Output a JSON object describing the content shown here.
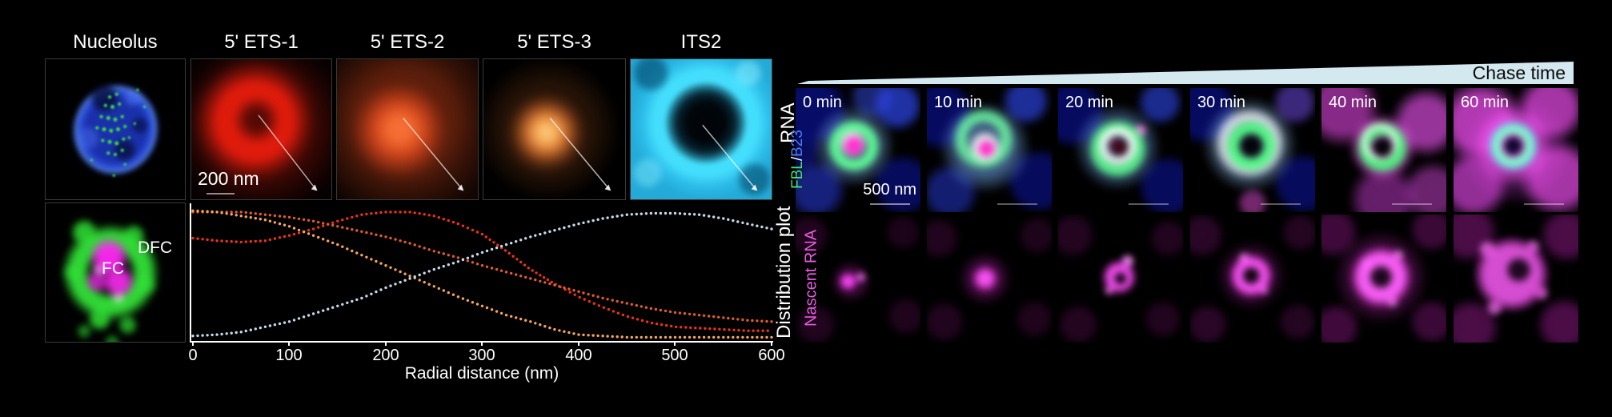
{
  "left_section": {
    "panel_labels": [
      "Nucleolus",
      "5' ETS-1",
      "5' ETS-2",
      "5' ETS-3",
      "ITS2"
    ],
    "row_label": "RNA",
    "scale_bar": "200 nm",
    "inset_labels": {
      "dfc": "DFC",
      "fc": "FC"
    },
    "plot_row_label": "Distribution plot"
  },
  "right_section": {
    "chase_label": "Chase time",
    "time_labels": [
      "0 min",
      "10 min",
      "20 min",
      "30 min",
      "40 min",
      "60 min"
    ],
    "channel_label": {
      "fbl": "FBL",
      "sep": " / ",
      "b23": "B23"
    },
    "scale_bar": "500 nm",
    "bottom_row_label": "Nascent RNA"
  },
  "colors": {
    "ets1_red": "#ee3018",
    "ets2_vermilion": "#e05a2e",
    "ets3_orange": "#f5a55a",
    "its2_pale_blue": "#c3d9e9",
    "chase_wedge_fill": "#d3e9ef",
    "chase_text": "#0a0a0a",
    "fbl_green": "#45e06e",
    "b23_blue": "#4a7cf7",
    "nascent_magenta": "#e85ce0"
  },
  "chart_data": {
    "type": "line",
    "style": "dotted",
    "title": "",
    "xlabel": "Radial distance (nm)",
    "ylabel": "",
    "xlim": [
      0,
      600
    ],
    "ylim": [
      0,
      1
    ],
    "grid": false,
    "legend_position": "none (series colors match the RNA image panels)",
    "x_tick_labels": [
      "0",
      "100",
      "200",
      "300",
      "400",
      "500",
      "600"
    ],
    "x": [
      0,
      25,
      50,
      75,
      100,
      125,
      150,
      175,
      200,
      225,
      250,
      275,
      300,
      325,
      350,
      375,
      400,
      425,
      450,
      475,
      500,
      525,
      550,
      575,
      600
    ],
    "series": [
      {
        "name": "5' ETS-1",
        "color": "#ee3018",
        "values": [
          0.77,
          0.75,
          0.74,
          0.75,
          0.79,
          0.84,
          0.9,
          0.95,
          0.97,
          0.97,
          0.94,
          0.88,
          0.8,
          0.67,
          0.53,
          0.42,
          0.32,
          0.24,
          0.17,
          0.12,
          0.09,
          0.08,
          0.07,
          0.06,
          0.06
        ]
      },
      {
        "name": "5' ETS-2",
        "color": "#e05a2e",
        "values": [
          0.97,
          0.97,
          0.97,
          0.95,
          0.93,
          0.9,
          0.86,
          0.82,
          0.78,
          0.73,
          0.67,
          0.62,
          0.56,
          0.51,
          0.46,
          0.41,
          0.36,
          0.31,
          0.27,
          0.23,
          0.2,
          0.18,
          0.16,
          0.14,
          0.13
        ]
      },
      {
        "name": "5' ETS-3",
        "color": "#f5a55a",
        "values": [
          0.98,
          0.97,
          0.94,
          0.91,
          0.86,
          0.79,
          0.72,
          0.64,
          0.56,
          0.48,
          0.4,
          0.32,
          0.25,
          0.18,
          0.13,
          0.07,
          0.03,
          0.02,
          0.01,
          0.01,
          0.01,
          0.01,
          0.01,
          0.01,
          0.01
        ]
      },
      {
        "name": "ITS2",
        "color": "#c3d9e9",
        "values": [
          0.02,
          0.03,
          0.05,
          0.09,
          0.13,
          0.19,
          0.25,
          0.31,
          0.39,
          0.46,
          0.53,
          0.59,
          0.66,
          0.72,
          0.78,
          0.83,
          0.88,
          0.92,
          0.95,
          0.96,
          0.96,
          0.95,
          0.92,
          0.88,
          0.84
        ]
      }
    ]
  }
}
